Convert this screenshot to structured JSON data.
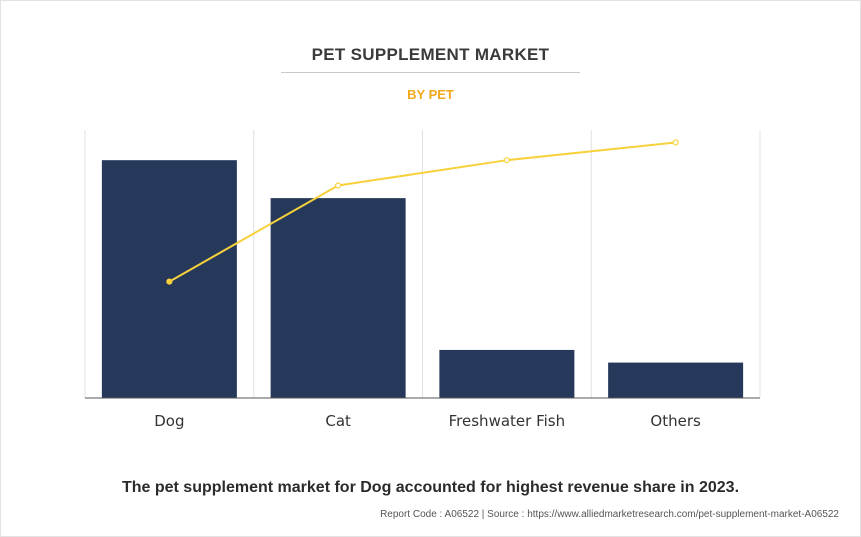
{
  "header": {
    "title": "PET SUPPLEMENT MARKET",
    "subtitle": "BY PET"
  },
  "footer": {
    "caption": "The pet supplement market for Dog accounted for highest revenue share in 2023.",
    "source": "Report Code : A06522  |  Source : https://www.alliedmarketresearch.com/pet-supplement-market-A06522"
  },
  "colors": {
    "bar": "#26395a",
    "line": "#f7d13c",
    "subtitle": "#f2a81d",
    "grid": "#e0e0e0",
    "axis": "#555555"
  },
  "chart_data": {
    "type": "bar",
    "categories": [
      "Dog",
      "Cat",
      "Freshwater Fish",
      "Others"
    ],
    "series": [
      {
        "type": "bar",
        "values": [
          94,
          79,
          19,
          14
        ]
      },
      {
        "type": "line",
        "values": [
          46,
          84,
          94,
          101
        ]
      }
    ],
    "ylim": [
      0,
      100
    ],
    "grid": true,
    "legend": "none",
    "xlabel": "",
    "ylabel": ""
  }
}
